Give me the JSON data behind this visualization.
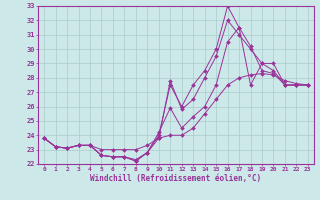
{
  "xlabel": "Windchill (Refroidissement éolien,°C)",
  "ylabel": "",
  "xlim": [
    -0.5,
    23.5
  ],
  "ylim": [
    22,
    33
  ],
  "xticks": [
    0,
    1,
    2,
    3,
    4,
    5,
    6,
    7,
    8,
    9,
    10,
    11,
    12,
    13,
    14,
    15,
    16,
    17,
    18,
    19,
    20,
    21,
    22,
    23
  ],
  "yticks": [
    22,
    23,
    24,
    25,
    26,
    27,
    28,
    29,
    30,
    31,
    32,
    33
  ],
  "bg_color": "#cce8e8",
  "grid_color": "#aacccc",
  "line_color": "#993399",
  "lines": [
    {
      "x": [
        0,
        1,
        2,
        3,
        4,
        5,
        6,
        7,
        8,
        9,
        10,
        11,
        12,
        13,
        14,
        15,
        16,
        17,
        18,
        19,
        20,
        21,
        22,
        23
      ],
      "y": [
        23.8,
        23.2,
        23.1,
        23.3,
        23.3,
        23.0,
        23.0,
        23.0,
        23.0,
        23.3,
        23.8,
        24.0,
        24.0,
        24.5,
        25.5,
        26.5,
        27.5,
        28.0,
        28.2,
        28.3,
        28.2,
        27.8,
        27.6,
        27.5
      ]
    },
    {
      "x": [
        0,
        1,
        2,
        3,
        4,
        5,
        6,
        7,
        8,
        9,
        10,
        11,
        12,
        13,
        14,
        15,
        16,
        17,
        18,
        19,
        20,
        21,
        22,
        23
      ],
      "y": [
        23.8,
        23.2,
        23.1,
        23.3,
        23.3,
        22.6,
        22.5,
        22.5,
        22.3,
        22.8,
        24.0,
        27.5,
        26.0,
        27.5,
        28.5,
        30.0,
        33.0,
        31.5,
        27.5,
        29.0,
        28.5,
        27.5,
        27.5,
        27.5
      ]
    },
    {
      "x": [
        0,
        1,
        2,
        3,
        4,
        5,
        6,
        7,
        8,
        9,
        10,
        11,
        12,
        13,
        14,
        15,
        16,
        17,
        18,
        19,
        20,
        21,
        22,
        23
      ],
      "y": [
        23.8,
        23.2,
        23.1,
        23.3,
        23.3,
        22.6,
        22.5,
        22.5,
        22.2,
        22.8,
        23.8,
        27.8,
        25.8,
        26.5,
        28.0,
        29.5,
        32.0,
        31.0,
        30.0,
        29.0,
        29.0,
        27.5,
        27.5,
        27.5
      ]
    },
    {
      "x": [
        0,
        1,
        2,
        3,
        4,
        5,
        6,
        7,
        8,
        9,
        10,
        11,
        12,
        13,
        14,
        15,
        16,
        17,
        18,
        19,
        20,
        21,
        22,
        23
      ],
      "y": [
        23.8,
        23.2,
        23.1,
        23.3,
        23.3,
        22.6,
        22.5,
        22.5,
        22.2,
        22.8,
        24.2,
        25.9,
        24.5,
        25.3,
        26.0,
        27.5,
        30.5,
        31.5,
        30.2,
        28.5,
        28.3,
        27.5,
        27.5,
        27.5
      ]
    }
  ]
}
